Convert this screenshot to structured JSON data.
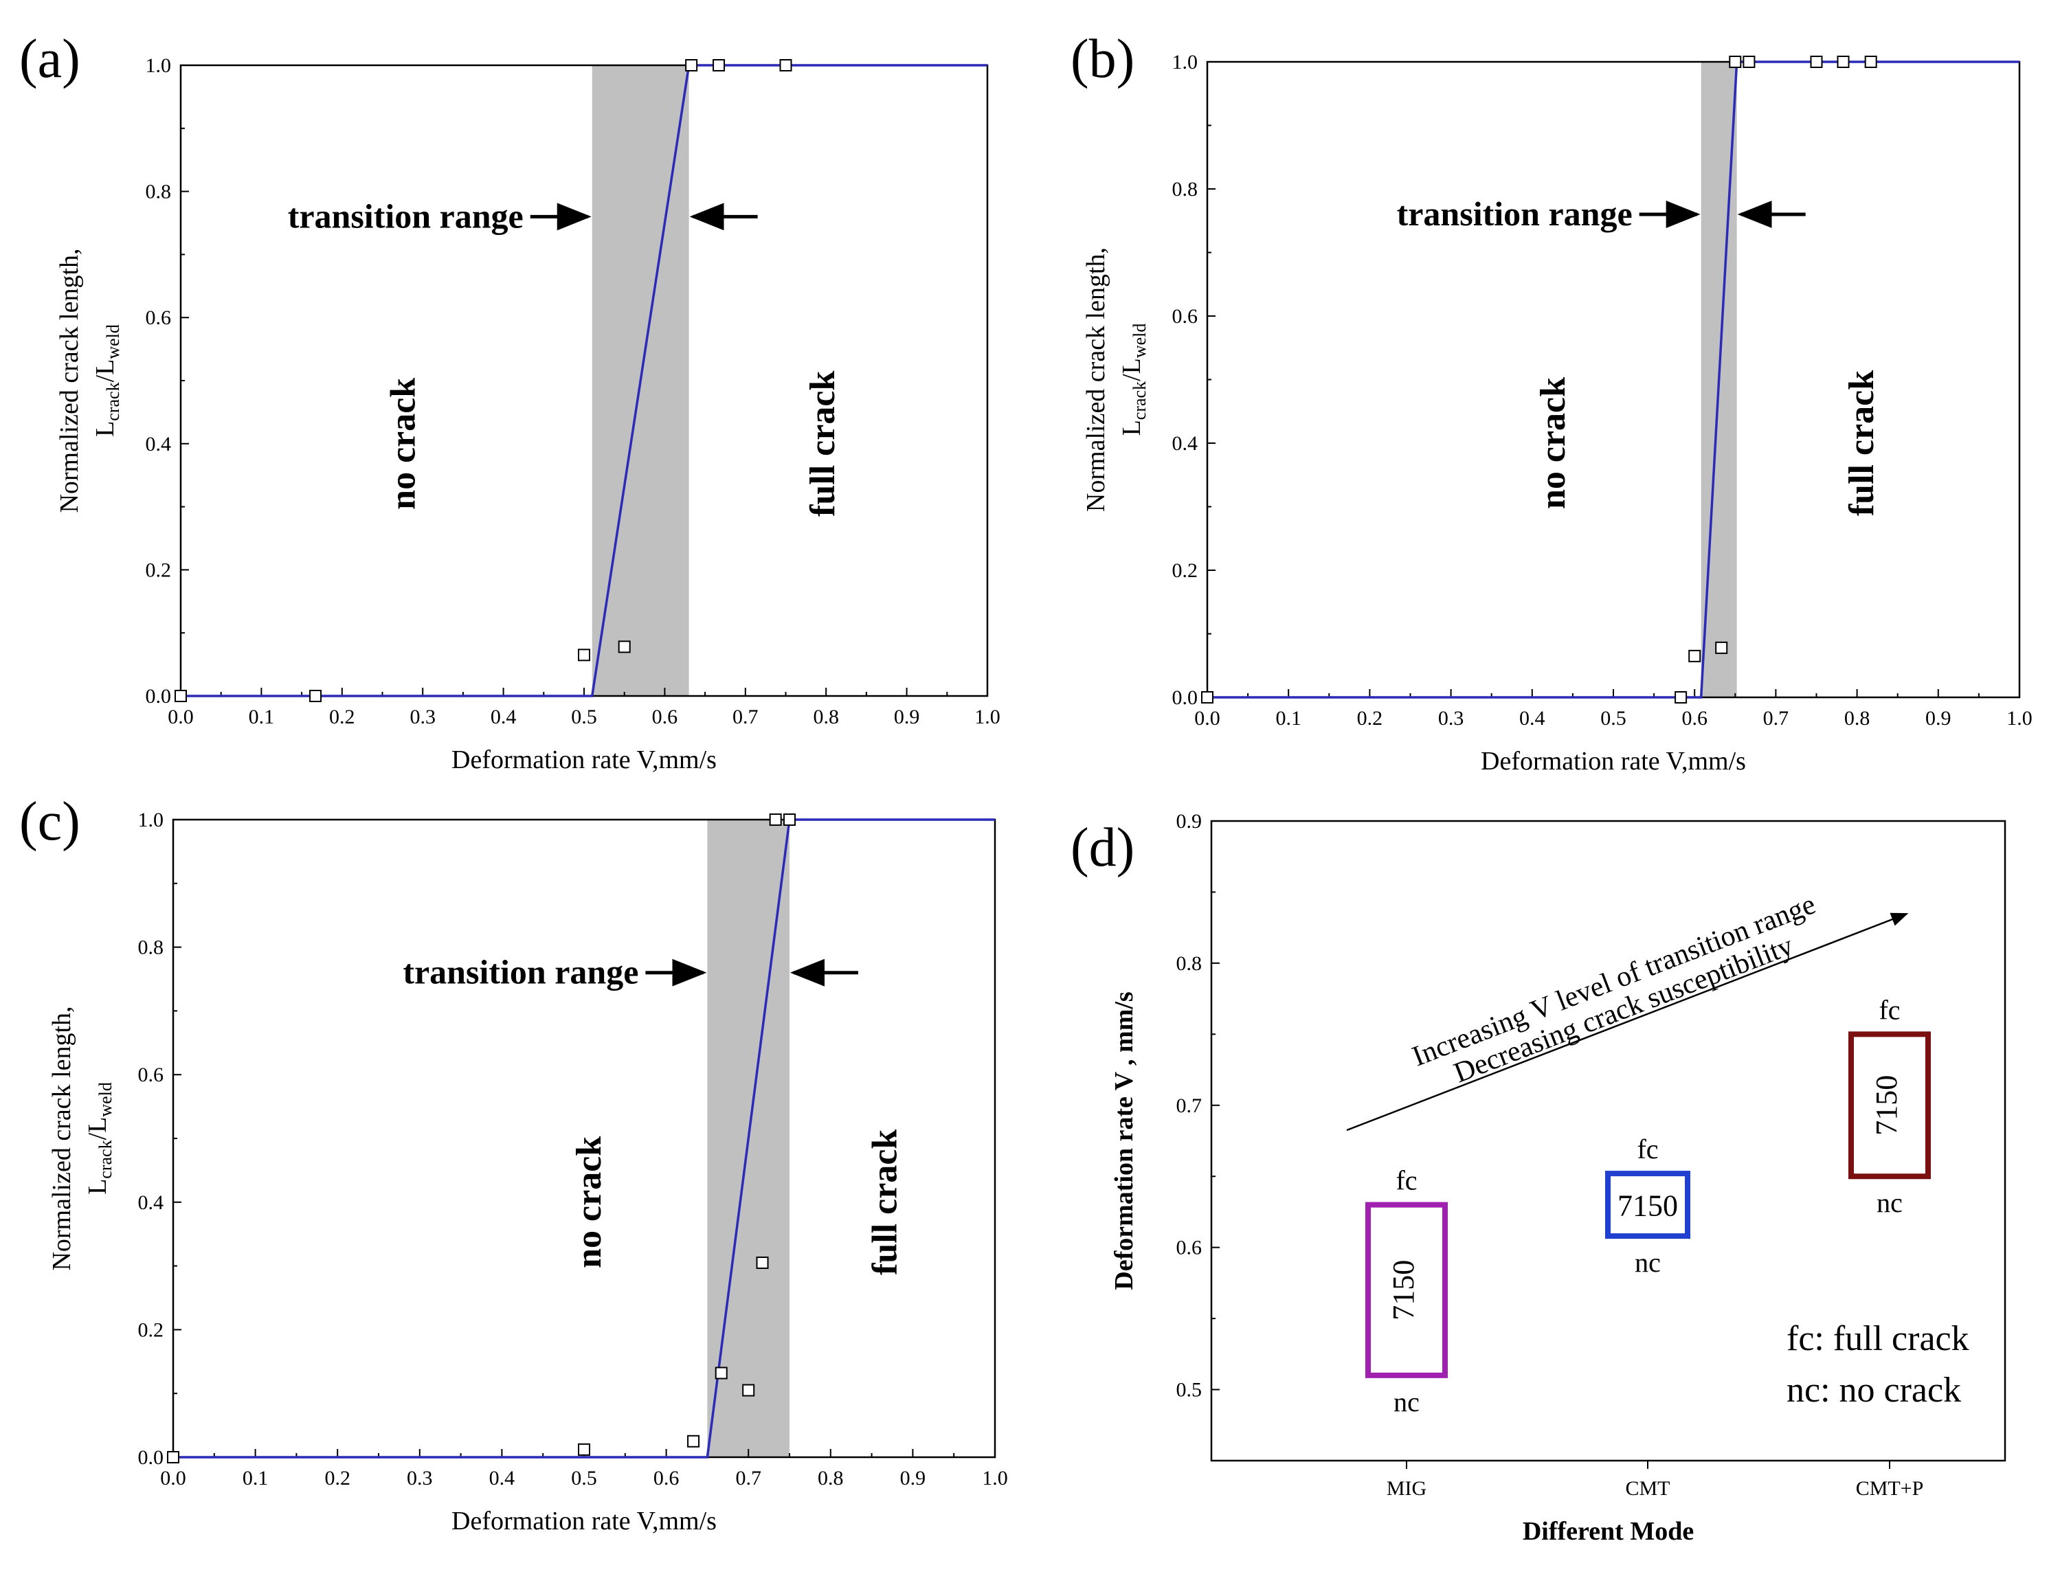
{
  "chart_data": [
    {
      "panel": "(a)",
      "type": "scatter",
      "xlabel": "Deformation rate V,mm/s",
      "ylabel": "Normalized crack length,",
      "ylabel_sub": {
        "l1": "L",
        "s1": "crack",
        "mid": "/L",
        "s2": "weld"
      },
      "xlim": [
        0.0,
        1.0
      ],
      "ylim": [
        0.0,
        1.0
      ],
      "xticks": [
        "0.0",
        "0.1",
        "0.2",
        "0.3",
        "0.4",
        "0.5",
        "0.6",
        "0.7",
        "0.8",
        "0.9",
        "1.0"
      ],
      "yticks": [
        "0.0",
        "0.2",
        "0.4",
        "0.6",
        "0.8",
        "1.0"
      ],
      "points": [
        [
          0.0,
          0.0
        ],
        [
          0.167,
          0.0
        ],
        [
          0.5,
          0.065
        ],
        [
          0.55,
          0.078
        ],
        [
          0.633,
          1.0
        ],
        [
          0.667,
          1.0
        ],
        [
          0.75,
          1.0
        ]
      ],
      "fit_line": [
        [
          0.0,
          0.0
        ],
        [
          0.51,
          0.0
        ],
        [
          0.63,
          1.0
        ],
        [
          1.0,
          1.0
        ]
      ],
      "transition_range": [
        0.51,
        0.63
      ],
      "annotations": {
        "transition": "transition range",
        "left": "no crack",
        "right": "full crack"
      },
      "colors": {
        "line": "#2b2bb8",
        "shade": "#c0c0c0"
      }
    },
    {
      "panel": "(b)",
      "type": "scatter",
      "xlabel": "Deformation rate V,mm/s",
      "ylabel": "Normalized crack length,",
      "ylabel_sub": {
        "l1": "L",
        "s1": "crack",
        "mid": "/L",
        "s2": "weld"
      },
      "xlim": [
        0.0,
        1.0
      ],
      "ylim": [
        0.0,
        1.0
      ],
      "xticks": [
        "0.0",
        "0.1",
        "0.2",
        "0.3",
        "0.4",
        "0.5",
        "0.6",
        "0.7",
        "0.8",
        "0.9",
        "1.0"
      ],
      "yticks": [
        "0.0",
        "0.2",
        "0.4",
        "0.6",
        "0.8",
        "1.0"
      ],
      "points": [
        [
          0.0,
          0.0
        ],
        [
          0.583,
          0.0
        ],
        [
          0.6,
          0.065
        ],
        [
          0.633,
          0.078
        ],
        [
          0.65,
          1.0
        ],
        [
          0.667,
          1.0
        ],
        [
          0.75,
          1.0
        ],
        [
          0.783,
          1.0
        ],
        [
          0.817,
          1.0
        ]
      ],
      "fit_line": [
        [
          0.0,
          0.0
        ],
        [
          0.608,
          0.0
        ],
        [
          0.652,
          1.0
        ],
        [
          1.0,
          1.0
        ]
      ],
      "transition_range": [
        0.608,
        0.652
      ],
      "annotations": {
        "transition": "transition range",
        "left": "no crack",
        "right": "full crack"
      },
      "colors": {
        "line": "#2b2bb8",
        "shade": "#c0c0c0"
      }
    },
    {
      "panel": "(c)",
      "type": "scatter",
      "xlabel": "Deformation rate V,mm/s",
      "ylabel": "Normalized crack length,",
      "ylabel_sub": {
        "l1": "L",
        "s1": "crack",
        "mid": "/L",
        "s2": "weld"
      },
      "xlim": [
        0.0,
        1.0
      ],
      "ylim": [
        0.0,
        1.0
      ],
      "xticks": [
        "0.0",
        "0.1",
        "0.2",
        "0.3",
        "0.4",
        "0.5",
        "0.6",
        "0.7",
        "0.8",
        "0.9",
        "1.0"
      ],
      "yticks": [
        "0.0",
        "0.2",
        "0.4",
        "0.6",
        "0.8",
        "1.0"
      ],
      "points": [
        [
          0.0,
          0.0
        ],
        [
          0.5,
          0.012
        ],
        [
          0.633,
          0.025
        ],
        [
          0.667,
          0.132
        ],
        [
          0.7,
          0.105
        ],
        [
          0.717,
          0.305
        ],
        [
          0.733,
          1.0
        ],
        [
          0.75,
          1.0
        ]
      ],
      "fit_line": [
        [
          0.0,
          0.0
        ],
        [
          0.65,
          0.0
        ],
        [
          0.75,
          1.0
        ],
        [
          1.0,
          1.0
        ]
      ],
      "transition_range": [
        0.65,
        0.75
      ],
      "annotations": {
        "transition": "transition range",
        "left": "no crack",
        "right": "full crack"
      },
      "colors": {
        "line": "#2b2bb8",
        "shade": "#c0c0c0"
      }
    },
    {
      "panel": "(d)",
      "type": "bar",
      "xlabel": "Different Mode",
      "ylabel": "Deformation rate V ,  mm/s",
      "categories": [
        "MIG",
        "CMT",
        "CMT+P"
      ],
      "ylim": [
        0.45,
        0.9
      ],
      "yticks": [
        "0.5",
        "0.6",
        "0.7",
        "0.8",
        "0.9"
      ],
      "ranges": [
        {
          "category": "MIG",
          "low": 0.51,
          "high": 0.63,
          "label": "7150",
          "top": "fc",
          "bottom": "nc",
          "color": "#a020b0",
          "vertical": true
        },
        {
          "category": "CMT",
          "low": 0.608,
          "high": 0.652,
          "label": "7150",
          "top": "fc",
          "bottom": "nc",
          "color": "#2040d0",
          "vertical": false
        },
        {
          "category": "CMT+P",
          "low": 0.65,
          "high": 0.75,
          "label": "7150",
          "top": "fc",
          "bottom": "nc",
          "color": "#7a1010",
          "vertical": true
        }
      ],
      "arrow_text": [
        "Increasing V level of transition range",
        "Decreasing crack susceptibility"
      ],
      "legend_lines": [
        "fc: full crack",
        "nc: no crack"
      ]
    }
  ]
}
